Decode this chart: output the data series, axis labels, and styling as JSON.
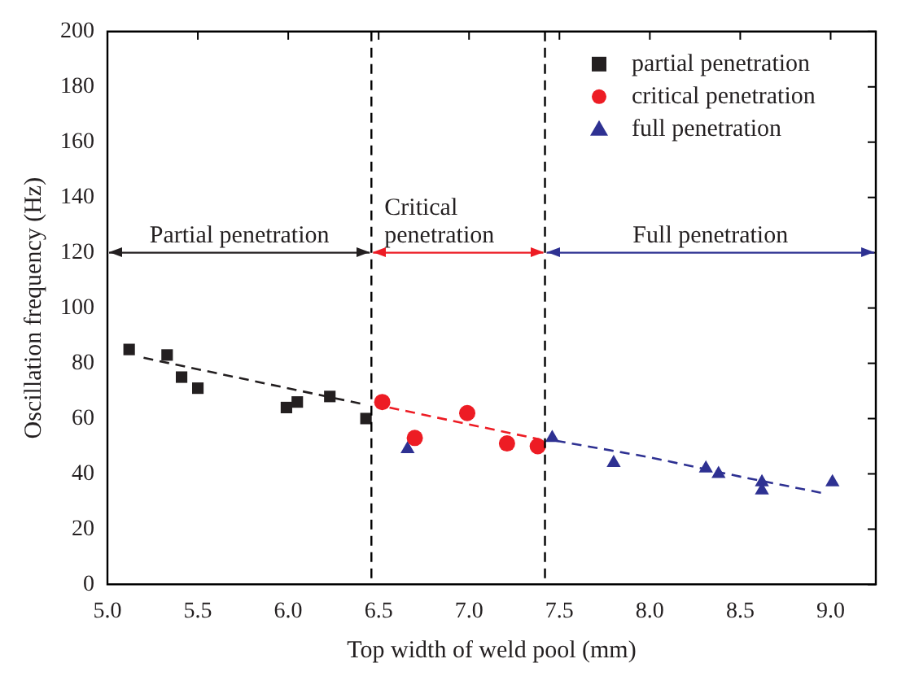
{
  "chart_data": {
    "type": "scatter",
    "xlabel": "Top width of weld pool (mm)",
    "ylabel": "Oscillation frequency (Hz)",
    "xlim": [
      5.0,
      9.25
    ],
    "xticks": [
      {
        "value": 5,
        "label": "5.0"
      },
      {
        "value": 5.5,
        "label": "5.5"
      },
      {
        "value": 6,
        "label": "6.0"
      },
      {
        "value": 6.5,
        "label": "6.5"
      },
      {
        "value": 7,
        "label": "7.0"
      },
      {
        "value": 7.5,
        "label": "7.5"
      },
      {
        "value": 8,
        "label": "8.0"
      },
      {
        "value": 8.5,
        "label": "8.5"
      },
      {
        "value": 9,
        "label": "9.0"
      }
    ],
    "ylim": [
      0,
      200
    ],
    "yticks": [
      0,
      20,
      40,
      60,
      80,
      100,
      120,
      140,
      160,
      180,
      200
    ],
    "grid": false,
    "legend": "top right",
    "series": [
      {
        "name": "partial penetration",
        "color": "#231f20",
        "marker": "square",
        "x": [
          5.12,
          5.33,
          5.41,
          5.5,
          5.99,
          6.05,
          6.23,
          6.43
        ],
        "values": [
          85,
          83,
          75,
          71,
          64,
          66,
          68,
          60
        ]
      },
      {
        "name": "critical penetration",
        "color": "#ed1c24",
        "marker": "circle",
        "x": [
          6.52,
          6.7,
          6.99,
          7.21,
          7.38
        ],
        "values": [
          66,
          53,
          62,
          51,
          50
        ]
      },
      {
        "name": "full penetration",
        "color": "#2e3192",
        "marker": "triangle",
        "x": [
          6.66,
          7.46,
          7.8,
          8.31,
          8.38,
          8.62,
          8.62,
          9.01
        ],
        "values": [
          49,
          53,
          44,
          42,
          40,
          37,
          34,
          37
        ]
      },
      {
        "type": "line",
        "color": "#231f20",
        "line_style": "dashed",
        "marker": "none",
        "x": [
          5.2,
          6.43
        ],
        "values": [
          82,
          65
        ]
      },
      {
        "type": "line",
        "color": "#ed1c24",
        "line_style": "dashed",
        "marker": "none",
        "x": [
          6.56,
          7.39
        ],
        "values": [
          64,
          52.5
        ]
      },
      {
        "type": "line",
        "color": "#2e3192",
        "line_style": "dashed",
        "marker": "none",
        "x": [
          7.48,
          8.0,
          8.5,
          8.96
        ],
        "values": [
          52,
          46,
          39,
          33
        ]
      }
    ],
    "ref_lines": [
      {
        "axis": "x",
        "value": 6.46,
        "line_style": "dashed",
        "color": "#000000"
      },
      {
        "axis": "x",
        "value": 7.42,
        "line_style": "dashed",
        "color": "#000000"
      },
      {
        "axis": "y",
        "value": 120,
        "color": "#231f20",
        "label": "Partial penetration"
      },
      {
        "axis": "y",
        "value": 120,
        "color": "#ed1c24",
        "label": "Critical\npenetration"
      },
      {
        "axis": "y",
        "value": 120,
        "color": "#2e3192",
        "label": "Full penetration"
      }
    ]
  }
}
